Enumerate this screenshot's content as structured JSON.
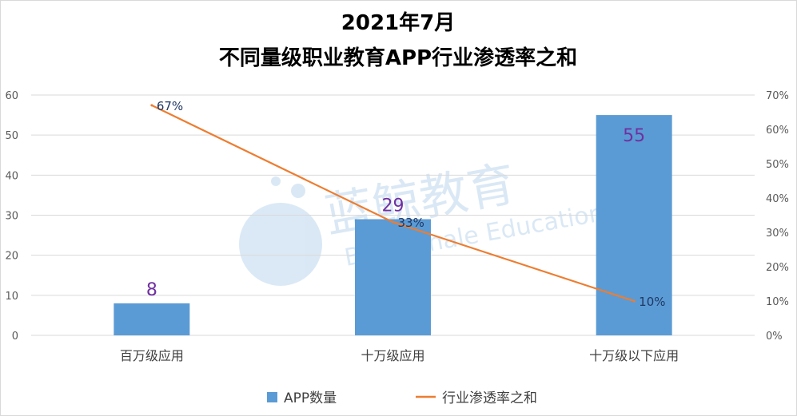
{
  "chart_data": {
    "type": "bar",
    "title": "2021年7月",
    "subtitle": "不同量级职业教育APP行业渗透率之和",
    "categories": [
      "百万级应用",
      "十万级应用",
      "十万级以下应用"
    ],
    "series": [
      {
        "name": "APP数量",
        "type": "bar",
        "axis": "left",
        "values": [
          8,
          29,
          55
        ],
        "labels": [
          "8",
          "29",
          "55"
        ],
        "color": "#5b9bd5"
      },
      {
        "name": "行业渗透率之和",
        "type": "line",
        "axis": "right",
        "values": [
          67,
          33,
          10
        ],
        "labels": [
          "67%",
          "33%",
          "10%"
        ],
        "color": "#ed7d31"
      }
    ],
    "y_left": {
      "min": 0,
      "max": 60,
      "step": 10,
      "ticks": [
        "0",
        "10",
        "20",
        "30",
        "40",
        "50",
        "60"
      ]
    },
    "y_right": {
      "min": 0,
      "max": 70,
      "step": 10,
      "ticks": [
        "0%",
        "10%",
        "20%",
        "30%",
        "40%",
        "50%",
        "60%",
        "70%"
      ]
    },
    "grid": true,
    "legend": "bottom",
    "watermark": {
      "cn": "蓝鲸教育",
      "en": "Blue Whale Education"
    }
  }
}
